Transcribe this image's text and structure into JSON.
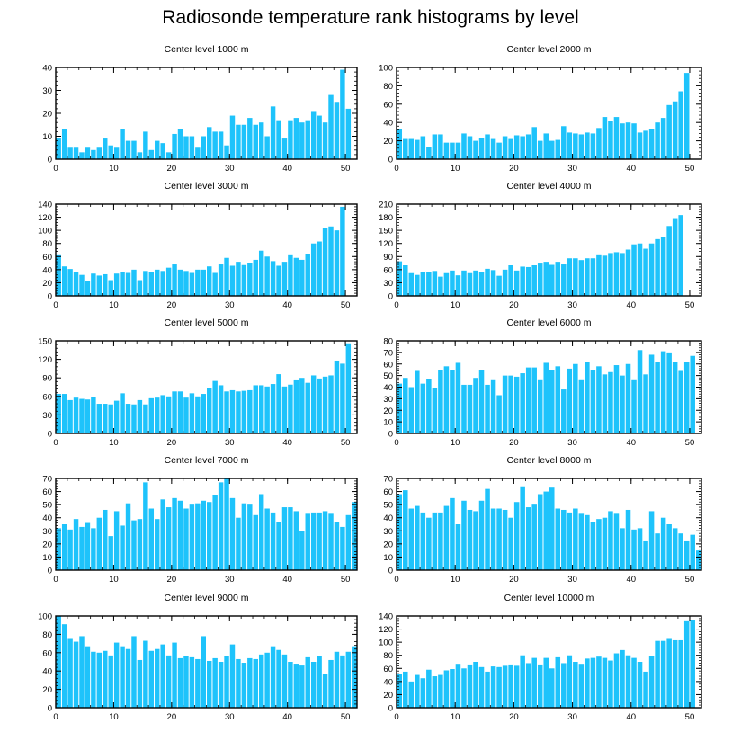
{
  "title": "Radiosonde temperature rank histograms by level",
  "colors": {
    "bar": "#1ec3fb",
    "bar_edge": "#ffffff",
    "axis": "#000000"
  },
  "chart_data": [
    {
      "type": "bar",
      "title": "Center level 1000 m",
      "ylim": [
        0,
        40
      ],
      "yticks": [
        0,
        10,
        20,
        30,
        40
      ],
      "xticks": [
        0,
        10,
        20,
        30,
        40,
        50
      ],
      "x_start": 0,
      "values": [
        9,
        13,
        5,
        5,
        3,
        5,
        4,
        5,
        9,
        6,
        5,
        13,
        8,
        8,
        3,
        12,
        4,
        8,
        7,
        3,
        11,
        13,
        10,
        10,
        5,
        10,
        14,
        12,
        12,
        6,
        19,
        15,
        15,
        18,
        15,
        16,
        10,
        23,
        17,
        9,
        17,
        18,
        16,
        17,
        21,
        19,
        16,
        28,
        25,
        39,
        22
      ]
    },
    {
      "type": "bar",
      "title": "Center level 2000 m",
      "ylim": [
        0,
        100
      ],
      "yticks": [
        0,
        20,
        40,
        60,
        80,
        100
      ],
      "xticks": [
        0,
        10,
        20,
        30,
        40,
        50
      ],
      "x_start": 0,
      "values": [
        33,
        22,
        22,
        21,
        25,
        13,
        27,
        27,
        18,
        18,
        18,
        28,
        25,
        20,
        23,
        27,
        22,
        18,
        25,
        22,
        26,
        25,
        27,
        35,
        20,
        28,
        20,
        21,
        36,
        29,
        28,
        27,
        29,
        28,
        34,
        46,
        42,
        46,
        39,
        40,
        39,
        29,
        31,
        33,
        40,
        45,
        59,
        63,
        74,
        94
      ]
    },
    {
      "type": "bar",
      "title": "Center level 3000 m",
      "ylim": [
        0,
        140
      ],
      "yticks": [
        0,
        20,
        40,
        60,
        80,
        100,
        120,
        140
      ],
      "xticks": [
        0,
        10,
        20,
        30,
        40,
        50
      ],
      "x_start": 0,
      "values": [
        62,
        45,
        41,
        36,
        32,
        23,
        34,
        31,
        33,
        24,
        34,
        36,
        35,
        40,
        24,
        38,
        36,
        40,
        38,
        43,
        48,
        40,
        38,
        35,
        40,
        40,
        45,
        35,
        48,
        58,
        46,
        52,
        47,
        50,
        55,
        69,
        60,
        53,
        46,
        52,
        62,
        58,
        55,
        64,
        80,
        83,
        103,
        106,
        100,
        136
      ]
    },
    {
      "type": "bar",
      "title": "Center level 4000 m",
      "ylim": [
        0,
        210
      ],
      "yticks": [
        0,
        30,
        60,
        90,
        120,
        150,
        180,
        210
      ],
      "xticks": [
        0,
        10,
        20,
        30,
        40,
        50
      ],
      "x_start": 0,
      "values": [
        79,
        70,
        52,
        48,
        55,
        55,
        57,
        44,
        52,
        58,
        47,
        58,
        52,
        58,
        55,
        62,
        59,
        46,
        60,
        70,
        58,
        67,
        66,
        70,
        74,
        78,
        71,
        78,
        72,
        86,
        86,
        82,
        86,
        86,
        93,
        92,
        98,
        100,
        98,
        106,
        118,
        120,
        108,
        120,
        130,
        135,
        160,
        178,
        185
      ]
    },
    {
      "type": "bar",
      "title": "Center level 5000 m",
      "ylim": [
        0,
        150
      ],
      "yticks": [
        0,
        30,
        60,
        90,
        120,
        150
      ],
      "xticks": [
        0,
        10,
        20,
        30,
        40,
        50
      ],
      "x_start": 0,
      "values": [
        64,
        64,
        54,
        58,
        56,
        55,
        59,
        48,
        48,
        47,
        53,
        65,
        48,
        47,
        54,
        47,
        57,
        58,
        62,
        60,
        68,
        68,
        58,
        65,
        60,
        64,
        73,
        85,
        78,
        68,
        70,
        68,
        69,
        70,
        78,
        78,
        76,
        80,
        96,
        76,
        79,
        86,
        90,
        82,
        94,
        89,
        92,
        94,
        118,
        113,
        146
      ]
    },
    {
      "type": "bar",
      "title": "Center level 6000 m",
      "ylim": [
        0,
        80
      ],
      "yticks": [
        0,
        10,
        20,
        30,
        40,
        50,
        60,
        70,
        80
      ],
      "xticks": [
        0,
        10,
        20,
        30,
        40,
        50
      ],
      "x_start": 0,
      "values": [
        43,
        48,
        40,
        54,
        43,
        47,
        39,
        55,
        58,
        55,
        61,
        42,
        42,
        48,
        55,
        42,
        46,
        33,
        50,
        50,
        49,
        52,
        57,
        57,
        46,
        61,
        55,
        58,
        38,
        56,
        60,
        46,
        62,
        55,
        58,
        51,
        53,
        59,
        50,
        60,
        46,
        72,
        51,
        68,
        62,
        71,
        70,
        62,
        54,
        62,
        67
      ]
    },
    {
      "type": "bar",
      "title": "Center level 7000 m",
      "ylim": [
        0,
        70
      ],
      "yticks": [
        0,
        10,
        20,
        30,
        40,
        50,
        60,
        70
      ],
      "xticks": [
        0,
        10,
        20,
        30,
        40,
        50
      ],
      "x_start": 0,
      "values": [
        32,
        35,
        31,
        39,
        33,
        36,
        32,
        40,
        46,
        26,
        45,
        34,
        51,
        38,
        39,
        67,
        47,
        39,
        54,
        48,
        55,
        53,
        47,
        50,
        51,
        53,
        52,
        57,
        67,
        70,
        55,
        40,
        51,
        50,
        42,
        58,
        47,
        44,
        37,
        48,
        48,
        45,
        30,
        43,
        44,
        44,
        45,
        43,
        37,
        33,
        42,
        52
      ]
    },
    {
      "type": "bar",
      "title": "Center level 8000 m",
      "ylim": [
        0,
        70
      ],
      "yticks": [
        0,
        10,
        20,
        30,
        40,
        50,
        60,
        70
      ],
      "xticks": [
        0,
        10,
        20,
        30,
        40,
        50
      ],
      "x_start": 0,
      "values": [
        58,
        61,
        47,
        49,
        44,
        40,
        44,
        44,
        49,
        55,
        35,
        53,
        46,
        45,
        53,
        62,
        47,
        47,
        46,
        40,
        52,
        64,
        48,
        50,
        58,
        60,
        63,
        47,
        46,
        44,
        47,
        43,
        42,
        37,
        39,
        40,
        45,
        43,
        32,
        46,
        31,
        32,
        22,
        45,
        28,
        40,
        35,
        32,
        28,
        22,
        27,
        15
      ]
    },
    {
      "type": "bar",
      "title": "Center level 9000 m",
      "ylim": [
        0,
        100
      ],
      "yticks": [
        0,
        20,
        40,
        60,
        80,
        100
      ],
      "xticks": [
        0,
        10,
        20,
        30,
        40,
        50
      ],
      "x_start": 0,
      "values": [
        100,
        91,
        75,
        72,
        78,
        67,
        61,
        60,
        62,
        57,
        71,
        67,
        64,
        78,
        52,
        73,
        62,
        64,
        69,
        57,
        71,
        54,
        56,
        55,
        53,
        78,
        51,
        54,
        50,
        56,
        69,
        53,
        49,
        54,
        53,
        58,
        60,
        67,
        63,
        58,
        50,
        48,
        46,
        55,
        50,
        56,
        37,
        52,
        61,
        57,
        61,
        67
      ]
    },
    {
      "type": "bar",
      "title": "Center level 10000 m",
      "ylim": [
        0,
        140
      ],
      "yticks": [
        0,
        20,
        40,
        60,
        80,
        100,
        120,
        140
      ],
      "xticks": [
        0,
        10,
        20,
        30,
        40,
        50
      ],
      "x_start": 0,
      "values": [
        52,
        55,
        40,
        50,
        45,
        58,
        48,
        50,
        57,
        59,
        67,
        60,
        66,
        70,
        62,
        55,
        63,
        62,
        64,
        66,
        64,
        80,
        68,
        76,
        66,
        76,
        60,
        77,
        68,
        80,
        70,
        67,
        75,
        76,
        78,
        76,
        72,
        83,
        88,
        80,
        76,
        70,
        55,
        79,
        102,
        102,
        105,
        103,
        103,
        132,
        134
      ]
    }
  ]
}
